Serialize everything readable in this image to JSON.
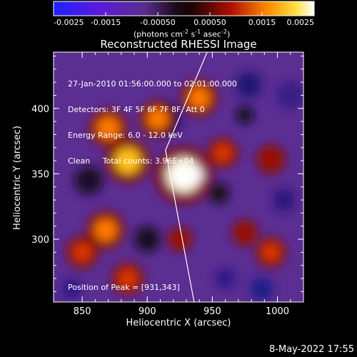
{
  "chart_data": {
    "type": "heatmap",
    "title": "Reconstructed RHESSI Image",
    "colorbar": {
      "ticks": [
        "-0.0025",
        "-0.0015",
        "-0.00050",
        "0.00050",
        "0.0015",
        "0.0025"
      ],
      "range": [
        -0.0025,
        0.0025
      ],
      "unit_label_parts": [
        "(photons cm",
        "-2",
        " s",
        "-1",
        " asec",
        "-2",
        ")"
      ]
    },
    "xlabel": "Heliocentric X (arcsec)",
    "ylabel": "Heliocentric Y (arcsec)",
    "xlim": [
      828,
      1020
    ],
    "ylim": [
      252,
      443
    ],
    "xticks": [
      "850",
      "900",
      "950",
      "1000"
    ],
    "yticks": [
      "300",
      "350",
      "400"
    ],
    "info_lines": [
      "27-Jan-2010 01:56:00.000 to 02:01:00.000",
      "Detectors: 3F 4F 5F 6F 7F 8F, Att 0",
      "Energy Range: 6.0 - 12.0 keV",
      "Clean     Total counts: 3.96E+04"
    ],
    "peak_label": "Position of Peak = [931,343]",
    "peak": [
      931,
      343
    ],
    "sources": [
      {
        "x": 928,
        "y": 349,
        "level": 0.0025
      },
      {
        "x": 885,
        "y": 360,
        "level": 0.0016
      },
      {
        "x": 870,
        "y": 385,
        "level": 0.0012
      },
      {
        "x": 908,
        "y": 392,
        "level": 0.0011
      },
      {
        "x": 940,
        "y": 408,
        "level": 0.0011
      },
      {
        "x": 868,
        "y": 307,
        "level": 0.0012
      },
      {
        "x": 850,
        "y": 290,
        "level": 0.0008
      },
      {
        "x": 885,
        "y": 270,
        "level": 0.0008
      },
      {
        "x": 958,
        "y": 366,
        "level": 0.0007
      },
      {
        "x": 995,
        "y": 361,
        "level": 0.0006
      },
      {
        "x": 995,
        "y": 290,
        "level": 0.0007
      },
      {
        "x": 975,
        "y": 305,
        "level": 0.0004
      },
      {
        "x": 925,
        "y": 300,
        "level": 0.0003
      }
    ],
    "limb": [
      [
        946,
        443
      ],
      [
        914,
        368
      ],
      [
        936,
        252
      ]
    ]
  },
  "footer_date": "8-May-2022 17:55"
}
